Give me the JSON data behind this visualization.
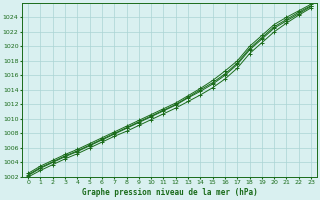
{
  "title": "Graphe pression niveau de la mer (hPa)",
  "x_labels": [
    "0",
    "1",
    "2",
    "3",
    "4",
    "5",
    "6",
    "7",
    "8",
    "9",
    "10",
    "11",
    "12",
    "13",
    "14",
    "15",
    "16",
    "17",
    "18",
    "19",
    "20",
    "21",
    "22",
    "23"
  ],
  "x_values": [
    0,
    1,
    2,
    3,
    4,
    5,
    6,
    7,
    8,
    9,
    10,
    11,
    12,
    13,
    14,
    15,
    16,
    17,
    18,
    19,
    20,
    21,
    22,
    23
  ],
  "ylim": [
    1002,
    1026
  ],
  "yticks": [
    1002,
    1004,
    1006,
    1008,
    1010,
    1012,
    1014,
    1016,
    1018,
    1020,
    1022,
    1024
  ],
  "line_color": "#1a6b1a",
  "marker_color": "#1a6b1a",
  "bg_color": "#d9f0f0",
  "grid_color": "#aad4d4",
  "title_color": "#1a6b1a",
  "series": [
    [
      1002.2,
      1003.2,
      1004.0,
      1004.8,
      1005.5,
      1006.3,
      1007.1,
      1007.9,
      1008.7,
      1009.5,
      1010.3,
      1011.1,
      1011.9,
      1012.9,
      1013.8,
      1014.8,
      1016.0,
      1017.5,
      1019.5,
      1021.0,
      1022.5,
      1023.5,
      1024.5,
      1025.5
    ],
    [
      1002.0,
      1002.9,
      1003.7,
      1004.5,
      1005.2,
      1006.0,
      1006.8,
      1007.6,
      1008.3,
      1009.1,
      1009.9,
      1010.7,
      1011.5,
      1012.4,
      1013.3,
      1014.3,
      1015.5,
      1017.0,
      1019.0,
      1020.5,
      1022.0,
      1023.2,
      1024.3,
      1025.3
    ],
    [
      1002.5,
      1003.5,
      1004.3,
      1005.1,
      1005.8,
      1006.6,
      1007.4,
      1008.2,
      1009.0,
      1009.8,
      1010.6,
      1011.4,
      1012.2,
      1013.2,
      1014.2,
      1015.3,
      1016.6,
      1018.0,
      1020.0,
      1021.5,
      1023.0,
      1024.0,
      1024.9,
      1025.8
    ],
    [
      1002.3,
      1003.3,
      1004.1,
      1004.9,
      1005.6,
      1006.4,
      1007.2,
      1008.0,
      1008.8,
      1009.6,
      1010.4,
      1011.2,
      1012.0,
      1013.0,
      1014.0,
      1015.0,
      1016.2,
      1017.7,
      1019.7,
      1021.2,
      1022.7,
      1023.7,
      1024.7,
      1025.6
    ]
  ]
}
